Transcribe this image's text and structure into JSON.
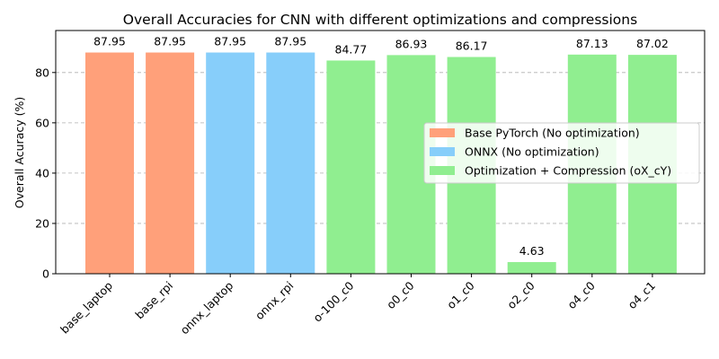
{
  "chart_data": {
    "type": "bar",
    "title": "Overall Accuracies for CNN with different optimizations and compressions",
    "xlabel": "",
    "ylabel": "Overall Acuracy (%)",
    "ylim": [
      0,
      96.7
    ],
    "yticks": [
      0,
      20,
      40,
      60,
      80
    ],
    "grid": "y-dashed",
    "legend_position": "center-right",
    "categories": [
      "base_laptop",
      "base_rpi",
      "onnx_laptop",
      "onnx_rpi",
      "o-100_c0",
      "o0_c0",
      "o1_c0",
      "o2_c0",
      "o4_c0",
      "o4_c1"
    ],
    "values": [
      87.95,
      87.95,
      87.95,
      87.95,
      84.77,
      86.93,
      86.17,
      4.63,
      87.13,
      87.02
    ],
    "value_labels": [
      "87.95",
      "87.95",
      "87.95",
      "87.95",
      "84.77",
      "86.93",
      "86.17",
      "4.63",
      "87.13",
      "87.02"
    ],
    "bar_groups": [
      0,
      0,
      1,
      1,
      2,
      2,
      2,
      2,
      2,
      2
    ],
    "series": [
      {
        "name": "Base PyTorch (No optimization)",
        "color": "#FFA07A"
      },
      {
        "name": "ONNX (No optimization)",
        "color": "#87CEFA"
      },
      {
        "name": "Optimization + Compression (oX_cY)",
        "color": "#90EE90"
      }
    ]
  }
}
